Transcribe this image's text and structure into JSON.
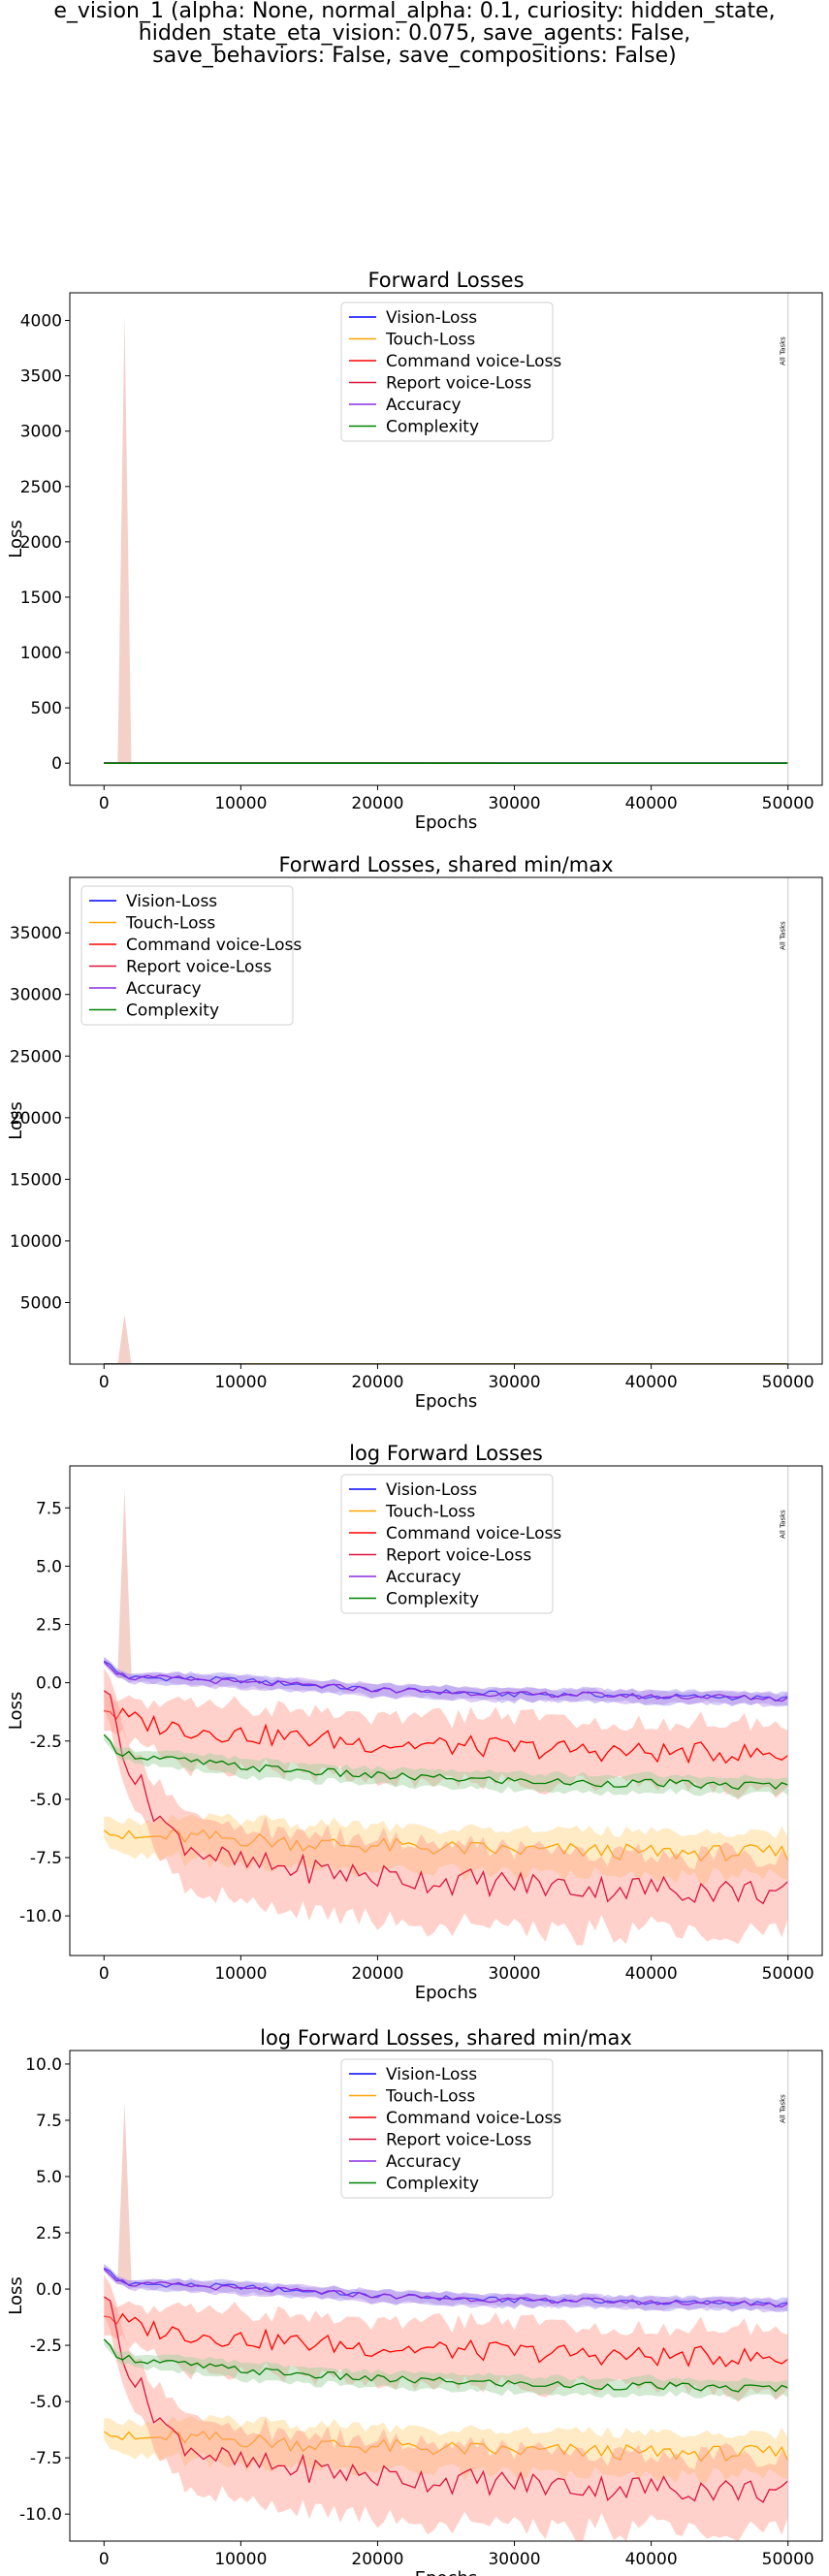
{
  "figure_title": [
    "e_vision_1 (alpha: None, normal_alpha: 0.1, curiosity: hidden_state,",
    "hidden_state_eta_vision: 0.075, save_agents: False,",
    "save_behaviors: False, save_compositions: False)"
  ],
  "series_style": [
    {
      "name": "Vision-Loss",
      "color": "#0000ff"
    },
    {
      "name": "Touch-Loss",
      "color": "#ffa500"
    },
    {
      "name": "Command voice-Loss",
      "color": "#ff0000"
    },
    {
      "name": "Report voice-Loss",
      "color": "#dc143c"
    },
    {
      "name": "Accuracy",
      "color": "#8a2be2"
    },
    {
      "name": "Complexity",
      "color": "#008000"
    }
  ],
  "chart_data": [
    {
      "type": "line",
      "title": "Forward Losses",
      "xlabel": "Epochs",
      "ylabel": "Loss",
      "xlim": [
        -2500,
        52500
      ],
      "ylim": [
        -200,
        4250
      ],
      "xticks": [
        "0",
        "10000",
        "20000",
        "30000",
        "40000",
        "50000"
      ],
      "yticks": [
        "0",
        "500",
        "1000",
        "1500",
        "2000",
        "2500",
        "3000",
        "3500",
        "4000"
      ],
      "legend": "top-center",
      "vline": {
        "x": 50000,
        "label": "All Tasks"
      },
      "series": [
        {
          "name": "Vision-Loss",
          "x": [
            0,
            50000
          ],
          "values": [
            1.0,
            0.5
          ]
        },
        {
          "name": "Touch-Loss",
          "x": [
            0,
            50000
          ],
          "values": [
            0.0,
            0.0
          ]
        },
        {
          "name": "Command voice-Loss",
          "x": [
            0,
            50000
          ],
          "values": [
            0.5,
            0.0
          ]
        },
        {
          "name": "Report voice-Loss",
          "x": [
            0,
            50000
          ],
          "values": [
            1.0,
            0.0
          ]
        },
        {
          "name": "Accuracy",
          "x": [
            0,
            50000
          ],
          "values": [
            1.0,
            0.5
          ]
        },
        {
          "name": "Complexity",
          "x": [
            0,
            50000
          ],
          "values": [
            0.1,
            0.0
          ]
        }
      ],
      "spike": {
        "x": [
          1000,
          1500,
          2000
        ],
        "high": [
          0,
          4050,
          0
        ]
      }
    },
    {
      "type": "line",
      "title": "Forward Losses, shared min/max",
      "xlabel": "Epochs",
      "ylabel": "Loss",
      "xlim": [
        -2500,
        52500
      ],
      "ylim": [
        0,
        39500
      ],
      "xticks": [
        "0",
        "10000",
        "20000",
        "30000",
        "40000",
        "50000"
      ],
      "yticks": [
        "5000",
        "10000",
        "15000",
        "20000",
        "25000",
        "30000",
        "35000"
      ],
      "legend": "top-left",
      "vline": {
        "x": 50000,
        "label": "All Tasks"
      },
      "series": [
        {
          "name": "Vision-Loss",
          "x": [
            0,
            50000
          ],
          "values": [
            1.0,
            0.5
          ]
        },
        {
          "name": "Touch-Loss",
          "x": [
            0,
            50000
          ],
          "values": [
            0.0,
            0.0
          ]
        },
        {
          "name": "Command voice-Loss",
          "x": [
            0,
            50000
          ],
          "values": [
            0.5,
            0.0
          ]
        },
        {
          "name": "Report voice-Loss",
          "x": [
            0,
            50000
          ],
          "values": [
            1.0,
            0.0
          ]
        },
        {
          "name": "Accuracy",
          "x": [
            0,
            50000
          ],
          "values": [
            1.0,
            0.5
          ]
        },
        {
          "name": "Complexity",
          "x": [
            0,
            50000
          ],
          "values": [
            0.1,
            0.0
          ]
        }
      ],
      "spike": {
        "x": [
          1000,
          1500,
          2000
        ],
        "high": [
          0,
          4050,
          0
        ]
      }
    },
    {
      "type": "line",
      "title": "log Forward Losses",
      "xlabel": "Epochs",
      "ylabel": "Loss",
      "xlim": [
        -2500,
        52500
      ],
      "ylim": [
        -11.7,
        9.3
      ],
      "xticks": [
        "0",
        "10000",
        "20000",
        "30000",
        "40000",
        "50000"
      ],
      "yticks": [
        "-10.0",
        "-7.5",
        "-5.0",
        "-2.5",
        "0.0",
        "2.5",
        "5.0",
        "7.5"
      ],
      "legend": "top-center",
      "vline": {
        "x": 50000,
        "label": "All Tasks"
      },
      "series": [
        {
          "name": "Vision-Loss",
          "x": [
            0,
            1000,
            2000,
            5000,
            10000,
            15000,
            20000,
            25000,
            30000,
            35000,
            40000,
            45000,
            50000
          ],
          "values": [
            1.0,
            0.4,
            0.2,
            0.2,
            0.1,
            -0.1,
            -0.3,
            -0.4,
            -0.5,
            -0.5,
            -0.6,
            -0.6,
            -0.7
          ]
        },
        {
          "name": "Touch-Loss",
          "x": [
            0,
            1000,
            2000,
            5000,
            10000,
            15000,
            20000,
            25000,
            30000,
            35000,
            40000,
            45000,
            50000
          ],
          "values": [
            -6.0,
            -6.5,
            -6.7,
            -6.6,
            -6.7,
            -6.9,
            -7.0,
            -7.1,
            -7.2,
            -7.2,
            -7.3,
            -7.3,
            -7.3
          ]
        },
        {
          "name": "Command voice-Loss",
          "x": [
            0,
            1000,
            2000,
            5000,
            10000,
            15000,
            20000,
            25000,
            30000,
            35000,
            40000,
            45000,
            50000
          ],
          "values": [
            -1.0,
            -1.4,
            -1.6,
            -1.9,
            -2.2,
            -2.4,
            -2.6,
            -2.7,
            -2.8,
            -2.9,
            -3.0,
            -3.0,
            -3.1
          ]
        },
        {
          "name": "Report voice-Loss",
          "x": [
            0,
            1000,
            2000,
            3000,
            5000,
            7000,
            10000,
            15000,
            20000,
            25000,
            30000,
            35000,
            40000,
            45000,
            50000
          ],
          "values": [
            0.0,
            -2.0,
            -3.8,
            -4.8,
            -6.5,
            -7.2,
            -7.8,
            -8.0,
            -8.3,
            -8.5,
            -8.6,
            -8.8,
            -8.8,
            -8.9,
            -9.0
          ]
        },
        {
          "name": "Accuracy",
          "x": [
            0,
            1000,
            2000,
            5000,
            10000,
            15000,
            20000,
            25000,
            30000,
            35000,
            40000,
            45000,
            50000
          ],
          "values": [
            1.0,
            0.4,
            0.2,
            0.2,
            0.0,
            -0.1,
            -0.3,
            -0.4,
            -0.5,
            -0.5,
            -0.6,
            -0.6,
            -0.7
          ]
        },
        {
          "name": "Complexity",
          "x": [
            0,
            1000,
            2000,
            5000,
            10000,
            15000,
            20000,
            25000,
            30000,
            35000,
            40000,
            45000,
            50000
          ],
          "values": [
            -2.4,
            -2.9,
            -3.1,
            -3.3,
            -3.6,
            -3.8,
            -4.0,
            -4.1,
            -4.2,
            -4.3,
            -4.3,
            -4.4,
            -4.4
          ]
        }
      ],
      "spike": {
        "x": [
          1000,
          1500,
          2000
        ],
        "high": [
          0.5,
          8.3,
          0.5
        ]
      }
    },
    {
      "type": "line",
      "title": "log Forward Losses, shared min/max",
      "xlabel": "Epochs",
      "ylabel": "Loss",
      "xlim": [
        -2500,
        52500
      ],
      "ylim": [
        -11.2,
        10.6
      ],
      "xticks": [
        "0",
        "10000",
        "20000",
        "30000",
        "40000",
        "50000"
      ],
      "yticks": [
        "-10.0",
        "-7.5",
        "-5.0",
        "-2.5",
        "0.0",
        "2.5",
        "5.0",
        "7.5",
        "10.0"
      ],
      "legend": "top-center",
      "vline": {
        "x": 50000,
        "label": "All Tasks"
      },
      "series": [
        {
          "name": "Vision-Loss",
          "x": [
            0,
            1000,
            2000,
            5000,
            10000,
            15000,
            20000,
            25000,
            30000,
            35000,
            40000,
            45000,
            50000
          ],
          "values": [
            1.0,
            0.4,
            0.2,
            0.2,
            0.1,
            -0.1,
            -0.3,
            -0.4,
            -0.5,
            -0.5,
            -0.6,
            -0.6,
            -0.7
          ]
        },
        {
          "name": "Touch-Loss",
          "x": [
            0,
            1000,
            2000,
            5000,
            10000,
            15000,
            20000,
            25000,
            30000,
            35000,
            40000,
            45000,
            50000
          ],
          "values": [
            -6.0,
            -6.5,
            -6.7,
            -6.6,
            -6.7,
            -6.9,
            -7.0,
            -7.1,
            -7.2,
            -7.2,
            -7.3,
            -7.3,
            -7.3
          ]
        },
        {
          "name": "Command voice-Loss",
          "x": [
            0,
            1000,
            2000,
            5000,
            10000,
            15000,
            20000,
            25000,
            30000,
            35000,
            40000,
            45000,
            50000
          ],
          "values": [
            -1.0,
            -1.4,
            -1.6,
            -1.9,
            -2.2,
            -2.4,
            -2.6,
            -2.7,
            -2.8,
            -2.9,
            -3.0,
            -3.0,
            -3.1
          ]
        },
        {
          "name": "Report voice-Loss",
          "x": [
            0,
            1000,
            2000,
            3000,
            5000,
            7000,
            10000,
            15000,
            20000,
            25000,
            30000,
            35000,
            40000,
            45000,
            50000
          ],
          "values": [
            0.0,
            -2.0,
            -3.8,
            -4.8,
            -6.5,
            -7.2,
            -7.8,
            -8.0,
            -8.3,
            -8.5,
            -8.6,
            -8.8,
            -8.8,
            -8.9,
            -9.0
          ]
        },
        {
          "name": "Accuracy",
          "x": [
            0,
            1000,
            2000,
            5000,
            10000,
            15000,
            20000,
            25000,
            30000,
            35000,
            40000,
            45000,
            50000
          ],
          "values": [
            1.0,
            0.4,
            0.2,
            0.2,
            0.0,
            -0.1,
            -0.3,
            -0.4,
            -0.5,
            -0.5,
            -0.6,
            -0.6,
            -0.7
          ]
        },
        {
          "name": "Complexity",
          "x": [
            0,
            1000,
            2000,
            5000,
            10000,
            15000,
            20000,
            25000,
            30000,
            35000,
            40000,
            45000,
            50000
          ],
          "values": [
            -2.4,
            -2.9,
            -3.1,
            -3.3,
            -3.6,
            -3.8,
            -4.0,
            -4.1,
            -4.2,
            -4.3,
            -4.3,
            -4.4,
            -4.4
          ]
        }
      ],
      "spike": {
        "x": [
          1000,
          1500,
          2000
        ],
        "high": [
          0.5,
          8.3,
          0.5
        ]
      }
    }
  ]
}
